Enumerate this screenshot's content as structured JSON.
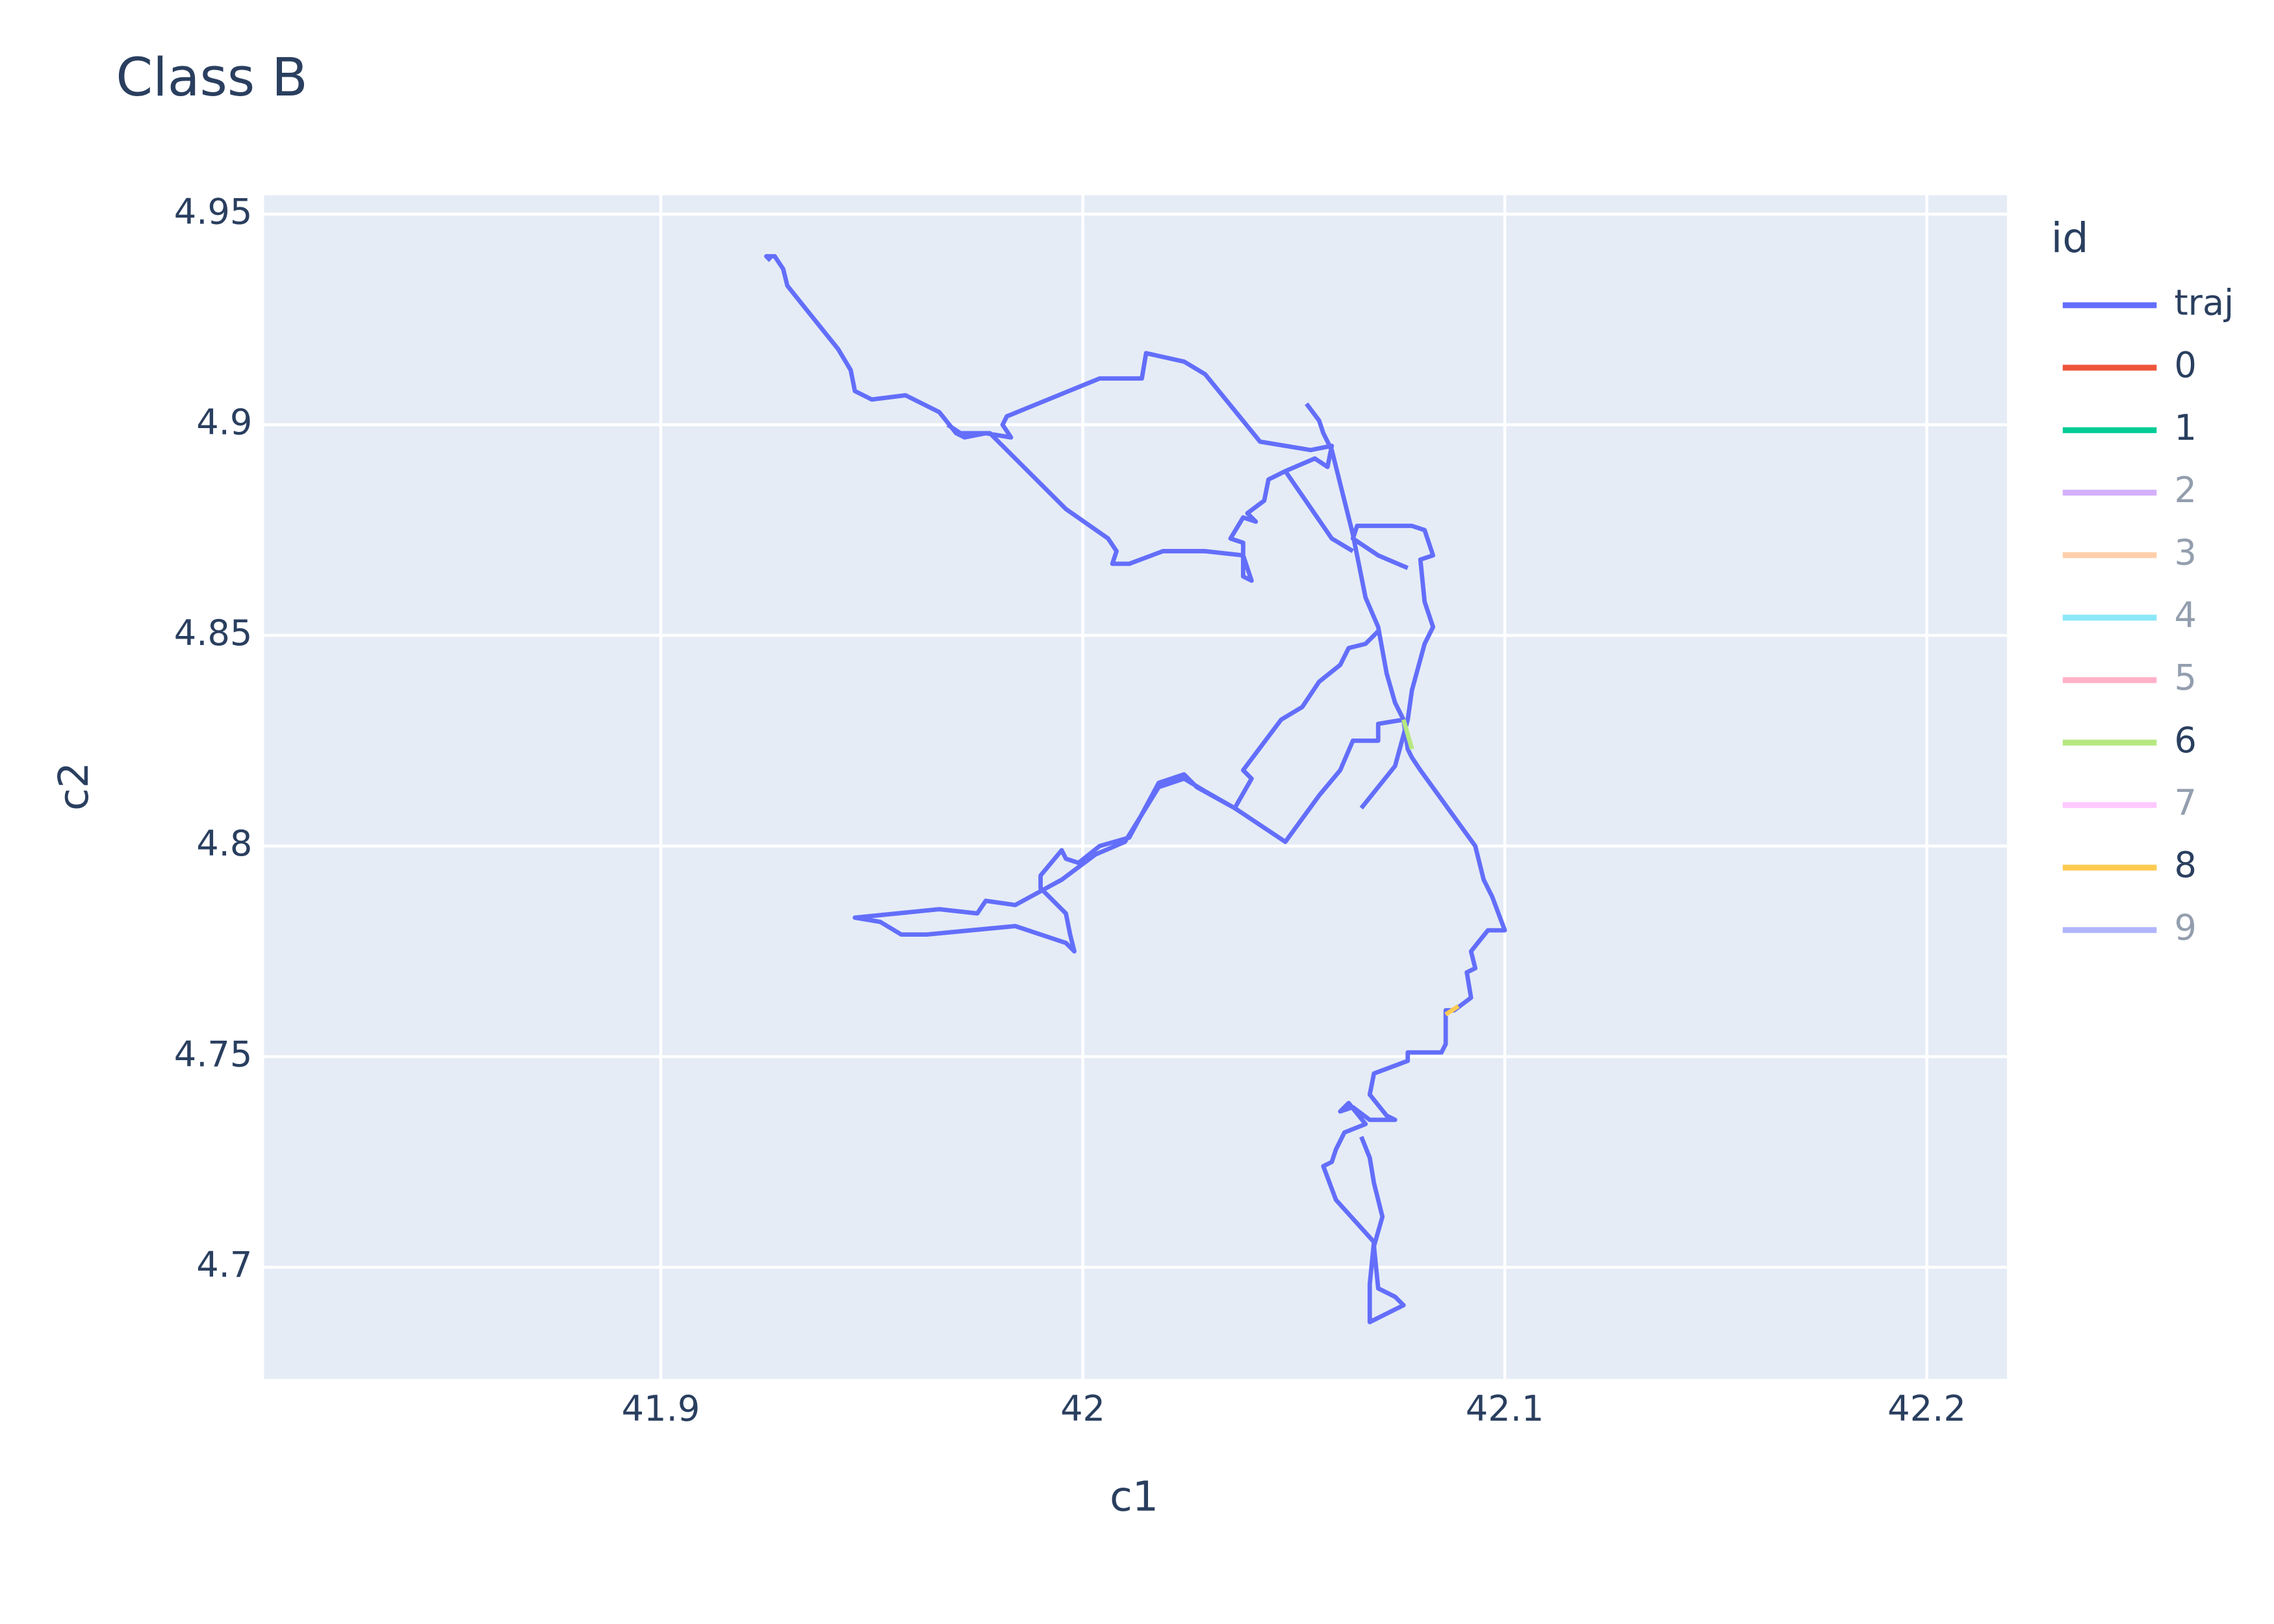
{
  "chart_data": {
    "type": "line",
    "title": "Class B",
    "x_label": "c1",
    "y_label": "c2",
    "xlim": [
      41.806,
      42.219
    ],
    "ylim": [
      4.6735,
      4.9545
    ],
    "xticks": [
      41.9,
      42,
      42.1,
      42.2
    ],
    "yticks": [
      4.7,
      4.75,
      4.8,
      4.85,
      4.9,
      4.95
    ],
    "grid": true,
    "legend_title": "id",
    "legend_position": "right",
    "series": [
      {
        "name": "traj",
        "color": "#636efa",
        "visible": true,
        "x": [
          41.926,
          41.925,
          41.927,
          41.929,
          41.93,
          41.934,
          41.942,
          41.945,
          41.946,
          41.95,
          41.958,
          41.966,
          41.97,
          41.972,
          41.977,
          41.983,
          41.981,
          41.982,
          42.004,
          42.014,
          42.015,
          42.024,
          42.029,
          42.042,
          42.054,
          42.059,
          42.058,
          42.055,
          42.048,
          42.044,
          42.043,
          42.039,
          42.041,
          42.038,
          42.035,
          42.038,
          42.038,
          42.04,
          42.038,
          42.029,
          42.019,
          42.011,
          42.007,
          42.008,
          42.006,
          41.996,
          41.989,
          41.978,
          41.971,
          41.968,
          null,
          42.053,
          42.056,
          42.057,
          42.059,
          42.061,
          42.064,
          42.067,
          42.07,
          42.072,
          42.074,
          42.076,
          42.077,
          42.078,
          42.08,
          42.093,
          42.095,
          42.097,
          42.1,
          42.096,
          42.092,
          42.093,
          42.091,
          42.092,
          42.088,
          42.086,
          42.086,
          42.085,
          42.077,
          42.077,
          42.069,
          42.068,
          42.072,
          42.074,
          42.068,
          42.064,
          42.061,
          42.063,
          42.067,
          42.062,
          42.06,
          42.059,
          42.057,
          42.06,
          42.069,
          42.068,
          42.068,
          42.076,
          42.074,
          42.07,
          42.069,
          42.071,
          42.069,
          42.068,
          42.066,
          null,
          42.07,
          42.067,
          42.063,
          42.061,
          42.056,
          42.052,
          42.047,
          42.038,
          42.04,
          42.036,
          42.027,
          42.024,
          42.018,
          42.011,
          42.004,
          41.999,
          41.996,
          41.995,
          41.99,
          41.99,
          41.996,
          41.997,
          41.998,
          41.996,
          41.984,
          41.963,
          41.957,
          41.952,
          41.946,
          41.966,
          41.975,
          41.977,
          41.984,
          41.995,
          42.003,
          42.01,
          42.018,
          42.024,
          42.029,
          42.036,
          42.048,
          42.056,
          42.061,
          42.064,
          42.07,
          42.07,
          42.076,
          null,
          42.066,
          42.074,
          42.077,
          42.078,
          42.081,
          42.083,
          42.081,
          42.08,
          42.083,
          42.081,
          42.078,
          42.065,
          42.064,
          42.07,
          42.077,
          null,
          42.048,
          42.059,
          42.064
        ],
        "values": [
          4.939,
          4.94,
          4.94,
          4.937,
          4.933,
          4.928,
          4.918,
          4.913,
          4.908,
          4.906,
          4.907,
          4.903,
          4.898,
          4.897,
          4.898,
          4.897,
          4.9,
          4.902,
          4.911,
          4.911,
          4.917,
          4.915,
          4.912,
          4.896,
          4.894,
          4.895,
          4.89,
          4.892,
          4.889,
          4.887,
          4.882,
          4.879,
          4.877,
          4.878,
          4.873,
          4.872,
          4.864,
          4.863,
          4.869,
          4.87,
          4.87,
          4.867,
          4.867,
          4.87,
          4.873,
          4.88,
          4.887,
          4.898,
          4.898,
          4.9,
          null,
          4.905,
          4.901,
          4.898,
          4.894,
          4.886,
          4.874,
          4.859,
          4.852,
          4.841,
          4.834,
          4.83,
          4.823,
          4.821,
          4.818,
          4.8,
          4.792,
          4.788,
          4.78,
          4.78,
          4.775,
          4.771,
          4.77,
          4.764,
          4.761,
          4.761,
          4.753,
          4.751,
          4.751,
          4.749,
          4.746,
          4.741,
          4.736,
          4.735,
          4.735,
          4.738,
          4.737,
          4.739,
          4.734,
          4.732,
          4.728,
          4.725,
          4.724,
          4.716,
          4.706,
          4.696,
          4.687,
          4.691,
          4.693,
          4.695,
          4.705,
          4.712,
          4.72,
          4.726,
          4.731,
          null,
          4.851,
          4.848,
          4.847,
          4.843,
          4.839,
          4.833,
          4.83,
          4.818,
          4.816,
          4.809,
          4.814,
          4.817,
          4.815,
          4.802,
          4.8,
          4.796,
          4.797,
          4.799,
          4.793,
          4.79,
          4.784,
          4.779,
          4.775,
          4.777,
          4.781,
          4.779,
          4.779,
          4.782,
          4.783,
          4.785,
          4.784,
          4.787,
          4.786,
          4.792,
          4.798,
          4.801,
          4.814,
          4.816,
          4.813,
          4.809,
          4.801,
          4.812,
          4.818,
          4.825,
          4.825,
          4.829,
          4.83,
          null,
          4.809,
          4.819,
          4.83,
          4.837,
          4.848,
          4.852,
          4.858,
          4.868,
          4.869,
          4.875,
          4.876,
          4.876,
          4.873,
          4.869,
          4.866,
          null,
          4.889,
          4.873,
          4.87
        ]
      },
      {
        "name": "0",
        "color": "#EF553B",
        "visible": true,
        "x": [],
        "values": []
      },
      {
        "name": "1",
        "color": "#00cc96",
        "visible": true,
        "x": [],
        "values": []
      },
      {
        "name": "2",
        "color": "#ab63fa",
        "visible": false,
        "x": [],
        "values": []
      },
      {
        "name": "3",
        "color": "#FFA15A",
        "visible": false,
        "x": [],
        "values": []
      },
      {
        "name": "4",
        "color": "#19d3f3",
        "visible": false,
        "x": [],
        "values": []
      },
      {
        "name": "5",
        "color": "#FF6692",
        "visible": false,
        "x": [],
        "values": []
      },
      {
        "name": "6",
        "color": "#B6E880",
        "visible": true,
        "x": [
          42.076,
          42.078
        ],
        "values": [
          4.83,
          4.823
        ]
      },
      {
        "name": "7",
        "color": "#FF97FF",
        "visible": false,
        "x": [],
        "values": []
      },
      {
        "name": "8",
        "color": "#FECB52",
        "visible": true,
        "x": [
          42.086,
          42.089
        ],
        "values": [
          4.76,
          4.762
        ]
      },
      {
        "name": "9",
        "color": "#636efa",
        "visible": false,
        "x": [],
        "values": []
      }
    ]
  }
}
